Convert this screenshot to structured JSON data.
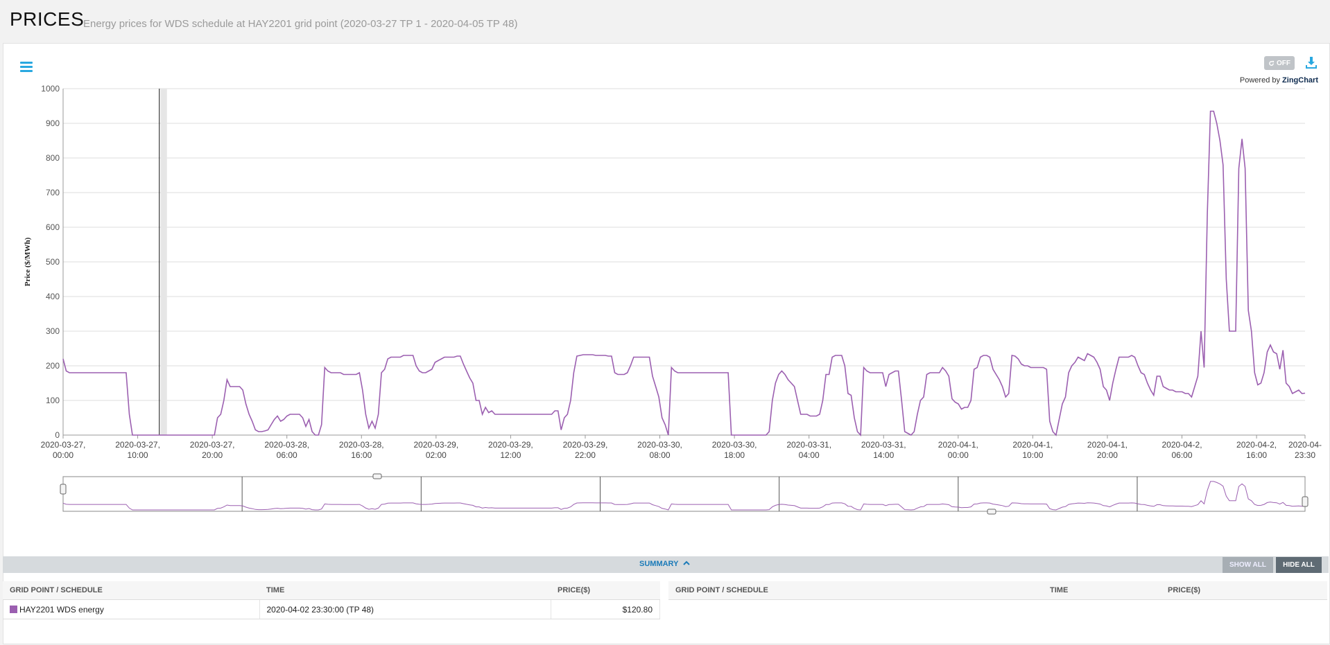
{
  "header": {
    "title": "PRICES",
    "subtitle": "Energy prices for WDS schedule at HAY2201 grid point (2020-03-27 TP 1 - 2020-04-05 TP 48)"
  },
  "toolbar": {
    "refresh_label": "OFF",
    "powered_prefix": "Powered by",
    "powered_brand": "ZingChart"
  },
  "colors": {
    "series": "#9b5fb0",
    "accent": "#29a8e0"
  },
  "chart_data": {
    "type": "line",
    "ylabel": "Price ($/MWh)",
    "ylim": [
      0,
      1000
    ],
    "yticks": [
      "0",
      "100",
      "200",
      "300",
      "400",
      "500",
      "600",
      "700",
      "800",
      "900",
      "1000"
    ],
    "xticks": [
      [
        "2020-03-27,",
        "00:00"
      ],
      [
        "2020-03-27,",
        "10:00"
      ],
      [
        "2020-03-27,",
        "20:00"
      ],
      [
        "2020-03-28,",
        "06:00"
      ],
      [
        "2020-03-28,",
        "16:00"
      ],
      [
        "2020-03-29,",
        "02:00"
      ],
      [
        "2020-03-29,",
        "12:00"
      ],
      [
        "2020-03-29,",
        "22:00"
      ],
      [
        "2020-03-30,",
        "08:00"
      ],
      [
        "2020-03-30,",
        "18:00"
      ],
      [
        "2020-03-31,",
        "04:00"
      ],
      [
        "2020-03-31,",
        "14:00"
      ],
      [
        "2020-04-1,",
        "00:00"
      ],
      [
        "2020-04-1,",
        "10:00"
      ],
      [
        "2020-04-1,",
        "20:00"
      ],
      [
        "2020-04-2,",
        "06:00"
      ],
      [
        "2020-04-2,",
        "16:00"
      ],
      [
        "2020-04-",
        "23:30"
      ]
    ],
    "grid": true,
    "series": [
      {
        "name": "HAY2201 WDS energy",
        "step_hours": 0.5,
        "start": "2020-03-27 00:00",
        "values": [
          220,
          185,
          180,
          180,
          180,
          180,
          180,
          180,
          180,
          180,
          180,
          180,
          180,
          180,
          180,
          180,
          180,
          180,
          180,
          180,
          180,
          60,
          0,
          0,
          0,
          0,
          0,
          0,
          0,
          0,
          0,
          0,
          0,
          0,
          0,
          0,
          0,
          0,
          0,
          0,
          0,
          0,
          0,
          0,
          0,
          0,
          0,
          0,
          0,
          50,
          60,
          100,
          160,
          140,
          140,
          140,
          140,
          130,
          90,
          60,
          40,
          15,
          10,
          10,
          12,
          15,
          30,
          45,
          55,
          40,
          45,
          55,
          60,
          60,
          60,
          60,
          50,
          25,
          45,
          10,
          0,
          0,
          30,
          195,
          185,
          180,
          180,
          180,
          180,
          175,
          175,
          175,
          175,
          175,
          180,
          130,
          60,
          20,
          40,
          20,
          60,
          180,
          190,
          220,
          225,
          225,
          225,
          225,
          230,
          230,
          230,
          230,
          200,
          185,
          180,
          180,
          185,
          190,
          210,
          215,
          220,
          225,
          225,
          225,
          225,
          228,
          228,
          205,
          185,
          165,
          150,
          100,
          100,
          60,
          80,
          65,
          70,
          60,
          60,
          60,
          60,
          60,
          60,
          60,
          60,
          60,
          60,
          60,
          60,
          60,
          60,
          60,
          60,
          60,
          60,
          60,
          70,
          70,
          15,
          50,
          60,
          100,
          180,
          228,
          230,
          232,
          232,
          232,
          232,
          230,
          230,
          230,
          230,
          228,
          228,
          180,
          175,
          175,
          175,
          180,
          200,
          225,
          225,
          225,
          225,
          225,
          225,
          170,
          140,
          110,
          50,
          30,
          0,
          195,
          185,
          180,
          180,
          180,
          180,
          180,
          180,
          180,
          180,
          180,
          180,
          180,
          180,
          180,
          180,
          180,
          180,
          180,
          0,
          0,
          0,
          0,
          0,
          0,
          0,
          0,
          0,
          0,
          0,
          0,
          10,
          100,
          150,
          175,
          185,
          175,
          160,
          150,
          140,
          100,
          60,
          60,
          60,
          55,
          55,
          55,
          60,
          100,
          175,
          175,
          225,
          230,
          230,
          230,
          200,
          120,
          115,
          50,
          10,
          0,
          195,
          185,
          180,
          180,
          180,
          180,
          180,
          140,
          175,
          180,
          185,
          185,
          100,
          10,
          5,
          0,
          10,
          60,
          100,
          110,
          175,
          180,
          180,
          180,
          180,
          195,
          185,
          170,
          105,
          95,
          90,
          75,
          80,
          80,
          100,
          190,
          195,
          225,
          230,
          230,
          225,
          190,
          175,
          160,
          140,
          110,
          120,
          230,
          228,
          220,
          205,
          200,
          200,
          195,
          195,
          195,
          195,
          195,
          190,
          40,
          10,
          0,
          45,
          90,
          110,
          180,
          200,
          210,
          225,
          220,
          215,
          235,
          230,
          225,
          210,
          190,
          140,
          130,
          100,
          150,
          190,
          225,
          225,
          225,
          225,
          230,
          225,
          200,
          180,
          175,
          150,
          130,
          115,
          170,
          170,
          140,
          135,
          130,
          130,
          125,
          125,
          125,
          120,
          120,
          110,
          140,
          170,
          300,
          195,
          640,
          935,
          935,
          900,
          850,
          780,
          450,
          300,
          300,
          300,
          770,
          855,
          770,
          360,
          300,
          180,
          145,
          150,
          180,
          240,
          260,
          240,
          235,
          190,
          245,
          150,
          140,
          120,
          125,
          130,
          120,
          121
        ]
      }
    ]
  },
  "summary": {
    "toggle_label": "SUMMARY",
    "show_all": "SHOW ALL",
    "hide_all": "HIDE ALL",
    "left_table": {
      "headers": [
        "GRID POINT / SCHEDULE",
        "TIME",
        "PRICE($)"
      ],
      "rows": [
        {
          "name": "HAY2201 WDS energy",
          "time": "2020-04-02 23:30:00 (TP 48)",
          "price": "$120.80"
        }
      ]
    },
    "right_table": {
      "headers": [
        "GRID POINT / SCHEDULE",
        "TIME",
        "PRICE($)"
      ]
    }
  }
}
